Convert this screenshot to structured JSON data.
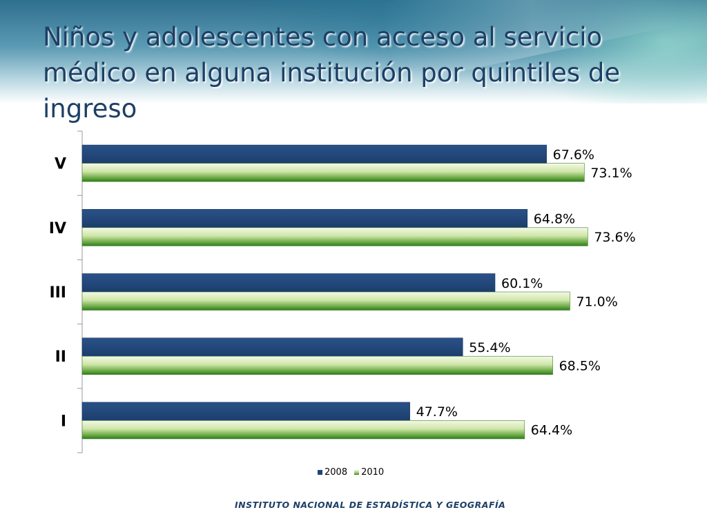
{
  "slide": {
    "title": "Niños y adolescentes con acceso al servicio médico en alguna institución por quintiles de ingreso",
    "footer": "INSTITUTO NACIONAL  DE ESTADÍSTICA Y GEOGRAFÍA"
  },
  "colors": {
    "title": "#1d3f66",
    "series_2008": "#1f4477",
    "series_2010_light": "#eef6dc",
    "series_2010_dark": "#2e7d1c"
  },
  "chart_data": {
    "type": "bar",
    "orientation": "horizontal",
    "categories": [
      "V",
      "IV",
      "III",
      "II",
      "I"
    ],
    "series": [
      {
        "name": "2008",
        "values": [
          67.6,
          64.8,
          60.1,
          55.4,
          47.7
        ],
        "labels": [
          "67.6%",
          "64.8%",
          "60.1%",
          "55.4%",
          "47.7%"
        ]
      },
      {
        "name": "2010",
        "values": [
          73.1,
          73.6,
          71.0,
          68.5,
          64.4
        ],
        "labels": [
          "73.1%",
          "73.6%",
          "71.0%",
          "68.5%",
          "64.4%"
        ]
      }
    ],
    "xlim": [
      0,
      80
    ],
    "grid": false,
    "legend_position": "bottom"
  }
}
